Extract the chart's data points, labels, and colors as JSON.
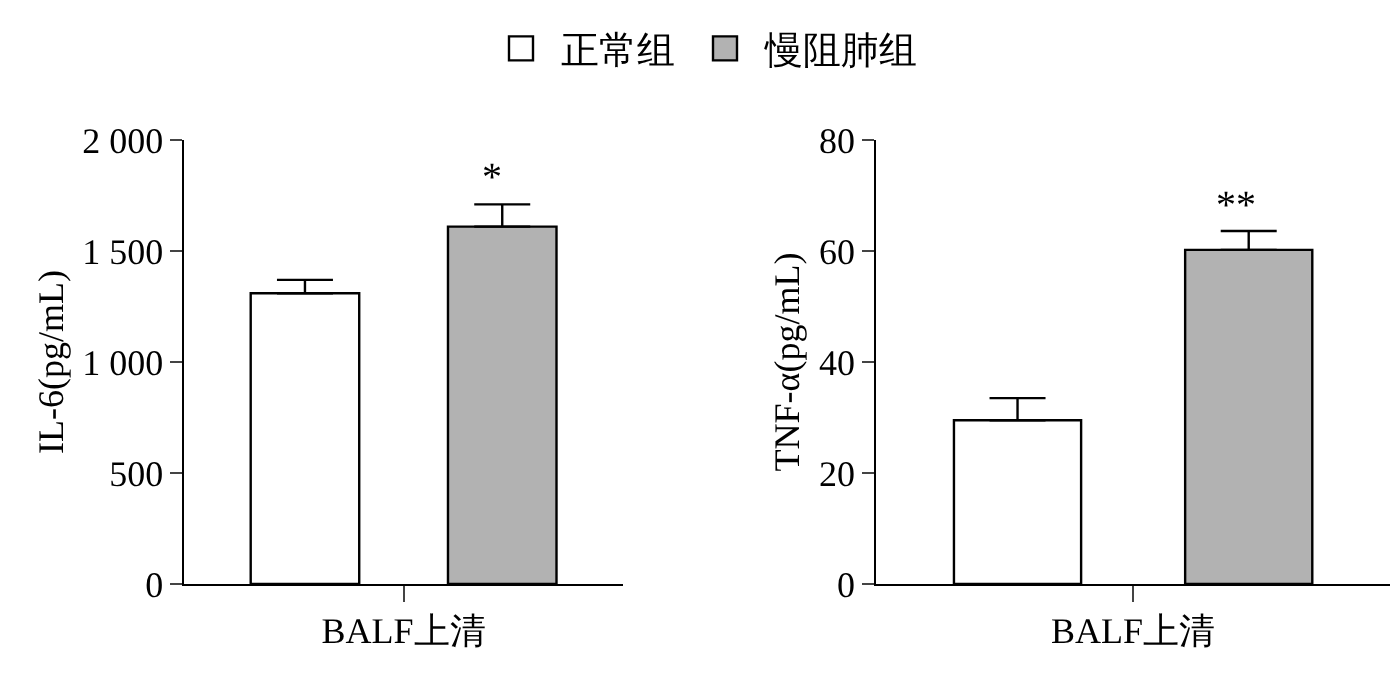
{
  "chart_data": [
    {
      "type": "bar",
      "ylabel": "IL-6(pg/mL)",
      "xlabel": "BALF上清",
      "categories": [
        null
      ],
      "ylim": [
        0,
        2000
      ],
      "yticks": [
        0,
        500,
        {
          "value": 1000,
          "label": "1 000"
        },
        {
          "value": 1500,
          "label": "1 500"
        },
        {
          "value": 2000,
          "label": "2 000"
        }
      ],
      "legend": "top",
      "series": [
        {
          "name": "正常组",
          "color": "#ffffff",
          "values": [
            1310
          ],
          "errors": [
            [
              1310,
              1370
            ]
          ]
        },
        {
          "name": "慢阻肺组",
          "color": "#b2b2b2",
          "values": [
            1610
          ],
          "errors": [
            [
              1610,
              1710
            ]
          ]
        }
      ],
      "annotations": [
        "*"
      ]
    },
    {
      "type": "bar",
      "ylabel": "TNF-α(pg/mL)",
      "xlabel": "BALF上清",
      "categories": [
        null
      ],
      "ylim": [
        0,
        80
      ],
      "yticks": [
        0,
        20,
        40,
        60,
        80
      ],
      "series": [
        {
          "color": "#ffffff",
          "values": [
            29.5
          ],
          "errors": [
            [
              29.5,
              33.5
            ]
          ]
        },
        {
          "color": "#b2b2b2",
          "values": [
            60.2
          ],
          "errors": [
            [
              60.2,
              63.6
            ]
          ]
        }
      ],
      "annotations": [
        "**"
      ]
    }
  ]
}
